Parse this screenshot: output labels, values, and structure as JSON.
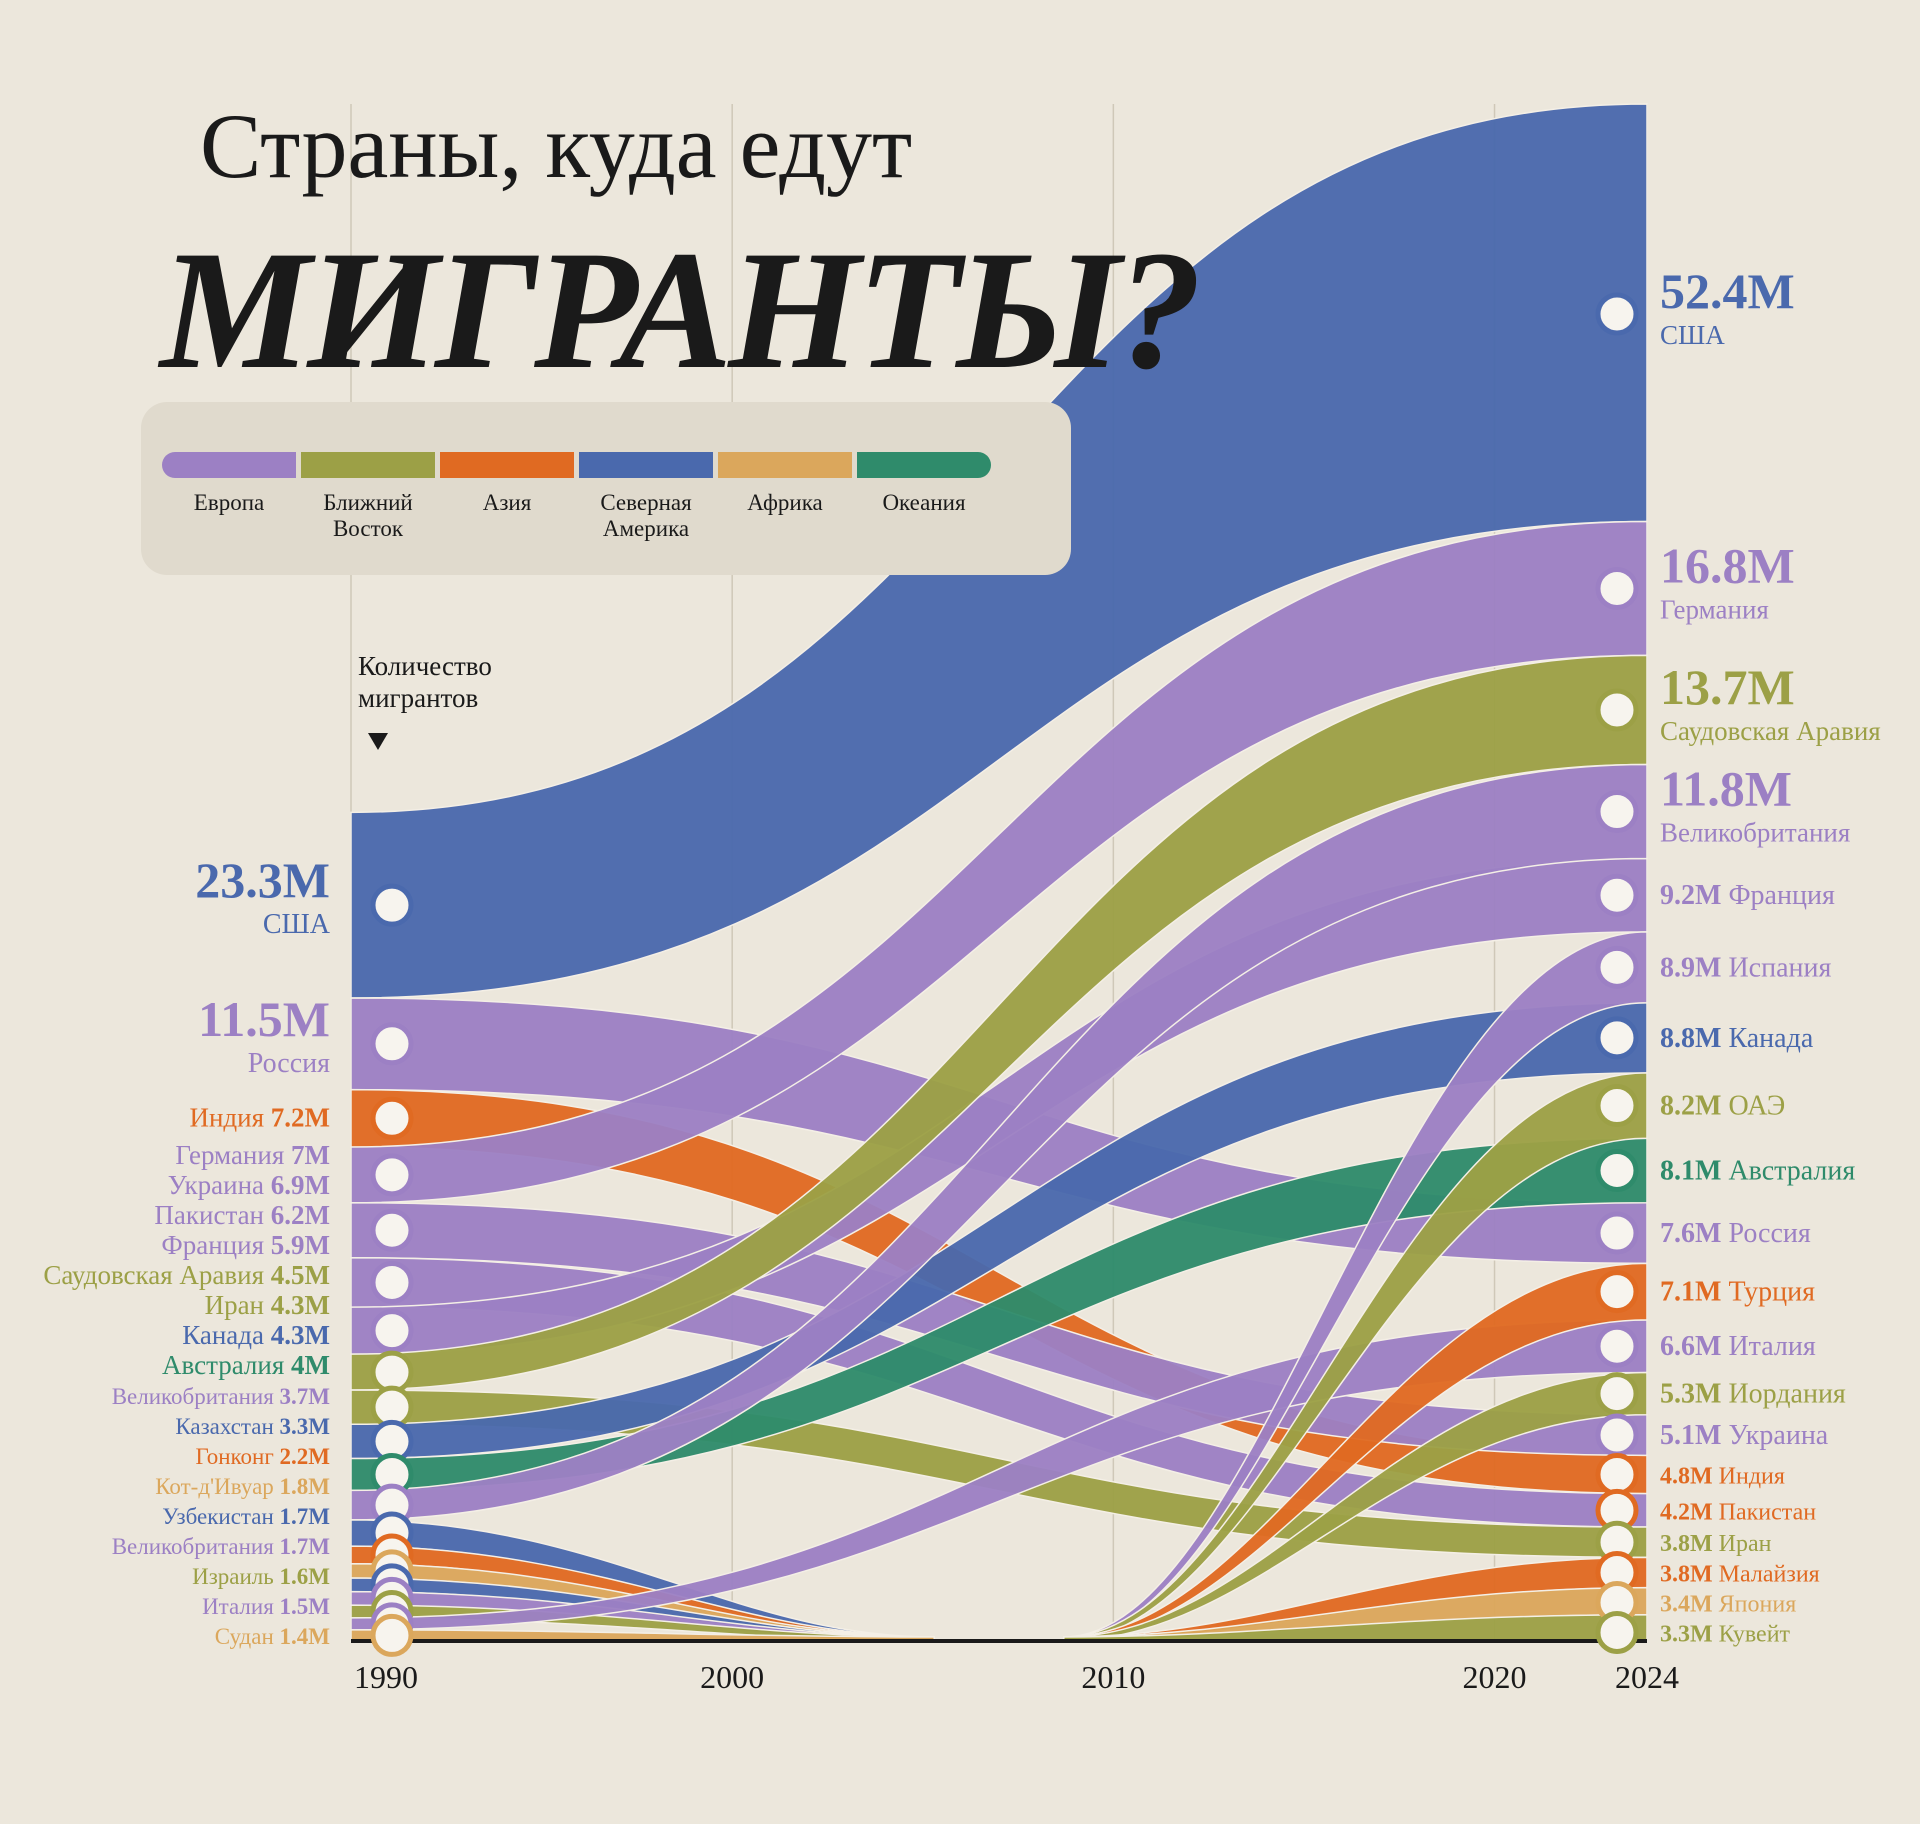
{
  "chart_data": {
    "type": "ribbon",
    "title": "Страны, куда едут",
    "subtitle": "МИГРАНТЫ?",
    "axis_label": "Количество мигрантов",
    "regions": [
      {
        "name": "Европа",
        "color": "#9c80c4"
      },
      {
        "name": "Ближний Восток",
        "color": "#9ca046"
      },
      {
        "name": "Азия",
        "color": "#e06a22"
      },
      {
        "name": "Северная Америка",
        "color": "#4a69ad"
      },
      {
        "name": "Африка",
        "color": "#dba75c"
      },
      {
        "name": "Океания",
        "color": "#2f8b6b"
      }
    ],
    "xlim": [
      1990,
      2024
    ],
    "xticks": [
      1990,
      2000,
      2010,
      2020,
      2024
    ],
    "start": [
      {
        "name": "США",
        "value": 23.3,
        "label": "23.3M",
        "color": "#4a69ad"
      },
      {
        "name": "Россия",
        "value": 11.5,
        "label": "11.5M",
        "color": "#9c80c4"
      },
      {
        "name": "Индия",
        "value": 7.2,
        "label": "7.2M",
        "color": "#e06a22"
      },
      {
        "name": "Германия",
        "value": 7,
        "label": "7M",
        "color": "#9c80c4"
      },
      {
        "name": "Украина",
        "value": 6.9,
        "label": "6.9M",
        "color": "#9c80c4"
      },
      {
        "name": "Пакистан",
        "value": 6.2,
        "label": "6.2M",
        "color": "#9c80c4"
      },
      {
        "name": "Франция",
        "value": 5.9,
        "label": "5.9M",
        "color": "#9c80c4"
      },
      {
        "name": "Саудовская Аравия",
        "value": 4.5,
        "label": "4.5M",
        "color": "#9ca046"
      },
      {
        "name": "Иран",
        "value": 4.3,
        "label": "4.3M",
        "color": "#9ca046"
      },
      {
        "name": "Канада",
        "value": 4.3,
        "label": "4.3M",
        "color": "#4a69ad"
      },
      {
        "name": "Австралия",
        "value": 4,
        "label": "4M",
        "color": "#2f8b6b"
      },
      {
        "name": "Великобритания",
        "value": 3.7,
        "label": "3.7M",
        "color": "#9c80c4"
      },
      {
        "name": "Казахстан",
        "value": 3.3,
        "label": "3.3M",
        "color": "#4a69ad"
      },
      {
        "name": "Гонконг",
        "value": 2.2,
        "label": "2.2M",
        "color": "#e06a22"
      },
      {
        "name": "Кот-д'Ивуар",
        "value": 1.8,
        "label": "1.8M",
        "color": "#dba75c"
      },
      {
        "name": "Узбекистан",
        "value": 1.7,
        "label": "1.7M",
        "color": "#4a69ad"
      },
      {
        "name": "Великобритания",
        "value": 1.7,
        "label": "1.7M",
        "color": "#9c80c4"
      },
      {
        "name": "Израиль",
        "value": 1.6,
        "label": "1.6M",
        "color": "#9ca046"
      },
      {
        "name": "Италия",
        "value": 1.5,
        "label": "1.5M",
        "color": "#9c80c4"
      },
      {
        "name": "Судан",
        "value": 1.4,
        "label": "1.4M",
        "color": "#dba75c"
      }
    ],
    "end": [
      {
        "name": "США",
        "value": 52.4,
        "label": "52.4M",
        "color": "#4a69ad"
      },
      {
        "name": "Германия",
        "value": 16.8,
        "label": "16.8M",
        "color": "#9c80c4"
      },
      {
        "name": "Саудовская Аравия",
        "value": 13.7,
        "label": "13.7M",
        "color": "#9ca046"
      },
      {
        "name": "Великобритания",
        "value": 11.8,
        "label": "11.8M",
        "color": "#9c80c4"
      },
      {
        "name": "Франция",
        "value": 9.2,
        "label": "9.2M",
        "color": "#9c80c4"
      },
      {
        "name": "Испания",
        "value": 8.9,
        "label": "8.9M",
        "color": "#9c80c4"
      },
      {
        "name": "Канада",
        "value": 8.8,
        "label": "8.8M",
        "color": "#4a69ad"
      },
      {
        "name": "ОАЭ",
        "value": 8.2,
        "label": "8.2M",
        "color": "#9ca046"
      },
      {
        "name": "Австралия",
        "value": 8.1,
        "label": "8.1M",
        "color": "#2f8b6b"
      },
      {
        "name": "Россия",
        "value": 7.6,
        "label": "7.6M",
        "color": "#9c80c4"
      },
      {
        "name": "Турция",
        "value": 7.1,
        "label": "7.1M",
        "color": "#e06a22"
      },
      {
        "name": "Италия",
        "value": 6.6,
        "label": "6.6M",
        "color": "#9c80c4"
      },
      {
        "name": "Иордания",
        "value": 5.3,
        "label": "5.3M",
        "color": "#9ca046"
      },
      {
        "name": "Украина",
        "value": 5.1,
        "label": "5.1M",
        "color": "#9c80c4"
      },
      {
        "name": "Индия",
        "value": 4.8,
        "label": "4.8M",
        "color": "#e06a22"
      },
      {
        "name": "Пакистан",
        "value": 4.2,
        "label": "4.2M",
        "color": "#e06a22"
      },
      {
        "name": "Иран",
        "value": 3.8,
        "label": "3.8M",
        "color": "#9ca046"
      },
      {
        "name": "Малайзия",
        "value": 3.8,
        "label": "3.8M",
        "color": "#e06a22"
      },
      {
        "name": "Япония",
        "value": 3.4,
        "label": "3.4M",
        "color": "#dba75c"
      },
      {
        "name": "Кувейт",
        "value": 3.3,
        "label": "3.3M",
        "color": "#9ca046"
      }
    ]
  }
}
